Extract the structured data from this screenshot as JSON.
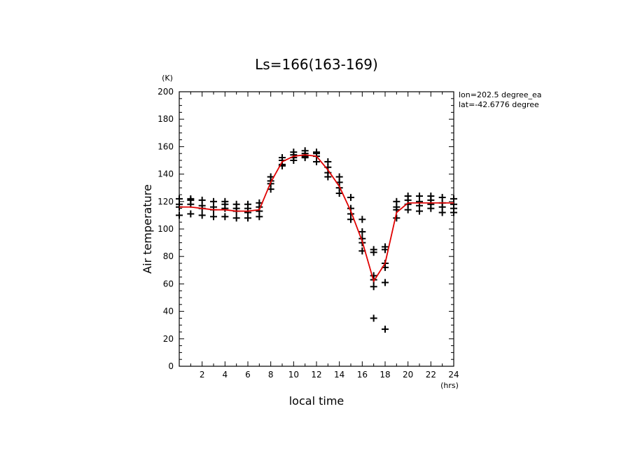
{
  "chart_data": {
    "type": "scatter",
    "title": "Ls=166(163-169)",
    "xlabel": "local time",
    "ylabel": "Air temperature",
    "x_unit": "(hrs)",
    "y_unit": "(K)",
    "xlim": [
      0,
      24
    ],
    "ylim": [
      0,
      200
    ],
    "x_ticks": [
      2,
      4,
      6,
      8,
      10,
      12,
      14,
      16,
      18,
      20,
      22,
      24
    ],
    "y_ticks": [
      0,
      20,
      40,
      60,
      80,
      100,
      120,
      140,
      160,
      180,
      200
    ],
    "annotations": [
      "lon=202.5 degree_ea",
      "lat=-42.6776 degree"
    ],
    "mean_line": {
      "name": "mean",
      "color": "#e00000",
      "x": [
        0,
        1,
        2,
        3,
        4,
        5,
        6,
        7,
        8,
        9,
        10,
        11,
        12,
        13,
        14,
        15,
        16,
        17,
        18,
        19,
        20,
        21,
        22,
        23,
        24
      ],
      "y": [
        116,
        116,
        115,
        114,
        114,
        113,
        113,
        114,
        134,
        149,
        153,
        154,
        153,
        143,
        131,
        113,
        91,
        62,
        75,
        112,
        119,
        119,
        119,
        119,
        119
      ]
    },
    "points": {
      "name": "samples",
      "marker": "+",
      "color": "#000000",
      "data": [
        {
          "x": 0,
          "values": [
            122,
            118,
            116,
            110
          ]
        },
        {
          "x": 1,
          "values": [
            122,
            121,
            118,
            111
          ]
        },
        {
          "x": 2,
          "values": [
            121,
            117,
            115,
            110
          ]
        },
        {
          "x": 3,
          "values": [
            120,
            116,
            114,
            109
          ]
        },
        {
          "x": 4,
          "values": [
            120,
            118,
            115,
            109
          ]
        },
        {
          "x": 5,
          "values": [
            118,
            115,
            113,
            108
          ]
        },
        {
          "x": 6,
          "values": [
            118,
            115,
            112,
            108
          ]
        },
        {
          "x": 7,
          "values": [
            119,
            116,
            113,
            109
          ]
        },
        {
          "x": 8,
          "values": [
            138,
            135,
            133,
            129
          ]
        },
        {
          "x": 9,
          "values": [
            152,
            150,
            147,
            146
          ]
        },
        {
          "x": 10,
          "values": [
            156,
            154,
            152,
            150
          ]
        },
        {
          "x": 11,
          "values": [
            157,
            155,
            153,
            152
          ]
        },
        {
          "x": 12,
          "values": [
            156,
            155,
            153,
            149
          ]
        },
        {
          "x": 13,
          "values": [
            149,
            145,
            141,
            138
          ]
        },
        {
          "x": 14,
          "values": [
            138,
            134,
            130,
            126
          ]
        },
        {
          "x": 15,
          "values": [
            123,
            115,
            111,
            107
          ]
        },
        {
          "x": 16,
          "values": [
            107,
            98,
            93,
            90,
            84
          ]
        },
        {
          "x": 17,
          "values": [
            85,
            83,
            66,
            63,
            58,
            35
          ]
        },
        {
          "x": 18,
          "values": [
            87,
            85,
            75,
            72,
            61,
            27
          ]
        },
        {
          "x": 19,
          "values": [
            120,
            116,
            114,
            108
          ]
        },
        {
          "x": 20,
          "values": [
            124,
            121,
            118,
            114
          ]
        },
        {
          "x": 21,
          "values": [
            124,
            120,
            117,
            113
          ]
        },
        {
          "x": 22,
          "values": [
            124,
            121,
            118,
            115
          ]
        },
        {
          "x": 23,
          "values": [
            123,
            119,
            116,
            112
          ]
        },
        {
          "x": 24,
          "values": [
            122,
            118,
            115,
            112
          ]
        }
      ]
    }
  }
}
